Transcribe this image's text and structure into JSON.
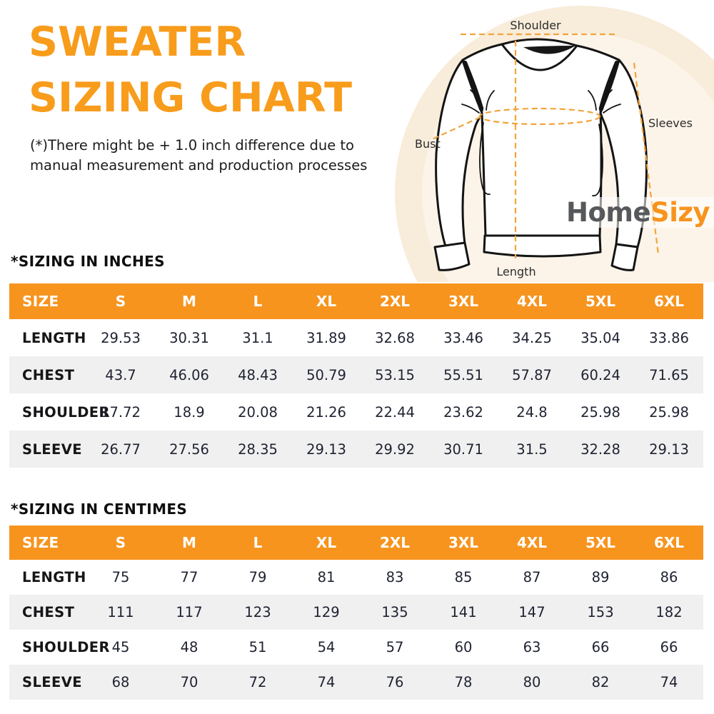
{
  "theme": {
    "accent": "#F7941E",
    "title_color": "#F89C1C",
    "dash": "#F2A43B",
    "ink": "#1B1B1D",
    "number_ink": "#1E2230",
    "logo_gray": "#57585B",
    "alt_row": "#F0F0F0",
    "cream_outer": "#F8ECDA",
    "cream_inner": "#FCF4E9",
    "header_text": "#FFFFFF",
    "line": "#141414"
  },
  "header": {
    "title_line1": "SWEATER",
    "title_line2": "SIZING CHART",
    "note_line1": "(*)There might be + 1.0 inch difference due to",
    "note_line2": "manual measurement and production processes"
  },
  "diagram": {
    "labels": {
      "shoulder": "Shoulder",
      "sleeves": "Sleeves",
      "bust": "Bust",
      "length": "Length"
    },
    "logo": {
      "part1": "Home",
      "part2": "Sizy"
    }
  },
  "tables": {
    "columns": [
      "SIZE",
      "S",
      "M",
      "L",
      "XL",
      "2XL",
      "3XL",
      "4XL",
      "5XL",
      "6XL"
    ],
    "inches": {
      "heading": "*SIZING IN INCHES",
      "rows": [
        {
          "label": "LENGTH",
          "values": [
            "29.53",
            "30.31",
            "31.1",
            "31.89",
            "32.68",
            "33.46",
            "34.25",
            "35.04",
            "33.86"
          ]
        },
        {
          "label": "CHEST",
          "values": [
            "43.7",
            "46.06",
            "48.43",
            "50.79",
            "53.15",
            "55.51",
            "57.87",
            "60.24",
            "71.65"
          ]
        },
        {
          "label": "SHOULDER",
          "values": [
            "17.72",
            "18.9",
            "20.08",
            "21.26",
            "22.44",
            "23.62",
            "24.8",
            "25.98",
            "25.98"
          ]
        },
        {
          "label": "SLEEVE",
          "values": [
            "26.77",
            "27.56",
            "28.35",
            "29.13",
            "29.92",
            "30.71",
            "31.5",
            "32.28",
            "29.13"
          ]
        }
      ]
    },
    "centimes": {
      "heading": "*SIZING IN CENTIMES",
      "rows": [
        {
          "label": "LENGTH",
          "values": [
            "75",
            "77",
            "79",
            "81",
            "83",
            "85",
            "87",
            "89",
            "86"
          ]
        },
        {
          "label": "CHEST",
          "values": [
            "111",
            "117",
            "123",
            "129",
            "135",
            "141",
            "147",
            "153",
            "182"
          ]
        },
        {
          "label": "SHOULDER",
          "values": [
            "45",
            "48",
            "51",
            "54",
            "57",
            "60",
            "63",
            "66",
            "66"
          ]
        },
        {
          "label": "SLEEVE",
          "values": [
            "68",
            "70",
            "72",
            "74",
            "76",
            "78",
            "80",
            "82",
            "74"
          ]
        }
      ]
    }
  }
}
